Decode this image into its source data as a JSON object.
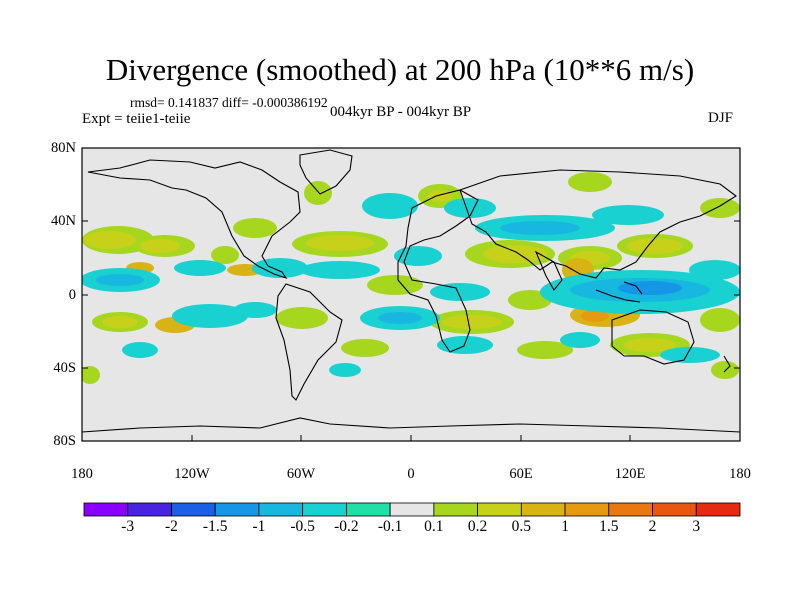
{
  "title": "Divergence (smoothed) at 200 hPa (10**6 m/s)",
  "stats": "rmsd= 0.141837 diff= -0.000386192",
  "experiment": "Expt = teiie1-teiie",
  "period": "004kyr BP - 004kyr BP",
  "season": "DJF",
  "map": {
    "lat_labels": [
      "80N",
      "40N",
      "0",
      "40S",
      "80S"
    ],
    "lon_labels": [
      "180",
      "120W",
      "60W",
      "0",
      "60E",
      "120E",
      "180"
    ],
    "background_color": "#e6e6e6"
  },
  "colorbar": {
    "colors": [
      "#8a00ff",
      "#4a23e0",
      "#1a5fe6",
      "#1596e6",
      "#17b7e0",
      "#19d1d1",
      "#21dfa6",
      "#e6e6e6",
      "#a6d61e",
      "#c8d11a",
      "#d9b214",
      "#e69a0f",
      "#e8780f",
      "#e8560f",
      "#e62a0f"
    ],
    "labels": [
      "-3",
      "-2",
      "-1.5",
      "-1",
      "-0.5",
      "-0.2",
      "-0.1",
      "0.1",
      "0.2",
      "0.5",
      "1",
      "1.5",
      "2",
      "3"
    ]
  }
}
